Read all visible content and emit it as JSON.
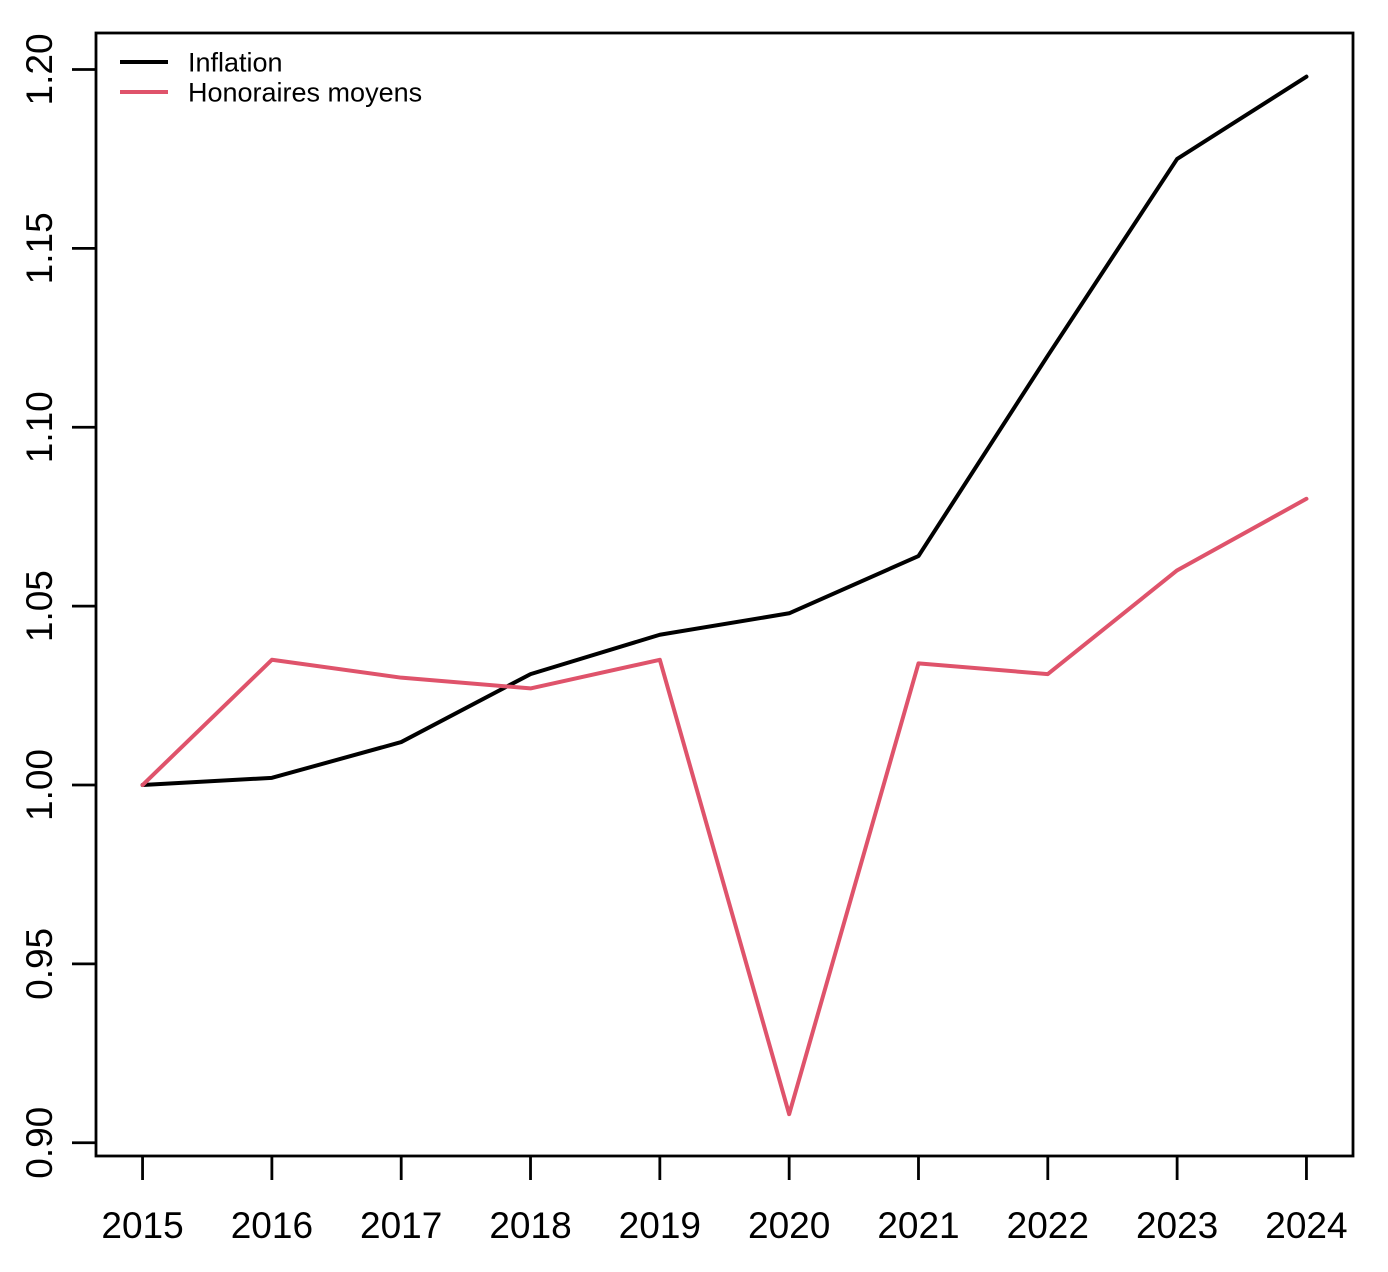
{
  "chart_data": {
    "type": "line",
    "title": "",
    "xlabel": "",
    "ylabel": "",
    "x": [
      2015,
      2016,
      2017,
      2018,
      2019,
      2020,
      2021,
      2022,
      2023,
      2024
    ],
    "x_ticks": [
      "2015",
      "2016",
      "2017",
      "2018",
      "2019",
      "2020",
      "2021",
      "2022",
      "2023",
      "2024"
    ],
    "y_ticks": [
      "0.90",
      "0.95",
      "1.00",
      "1.05",
      "1.10",
      "1.15",
      "1.20"
    ],
    "y_tick_values": [
      0.9,
      0.95,
      1.0,
      1.05,
      1.1,
      1.15,
      1.2
    ],
    "xlim": [
      2014.64,
      2024.36
    ],
    "ylim": [
      0.8963,
      1.2102
    ],
    "grid": false,
    "legend_position": "topleft",
    "series": [
      {
        "name": "Inflation",
        "color": "#000000",
        "values": [
          1.0,
          1.002,
          1.012,
          1.031,
          1.042,
          1.048,
          1.064,
          1.12,
          1.175,
          1.198
        ]
      },
      {
        "name": "Honoraires moyens",
        "color": "#DF536B",
        "values": [
          1.0,
          1.035,
          1.03,
          1.027,
          1.035,
          0.908,
          1.034,
          1.031,
          1.06,
          1.08
        ]
      }
    ]
  },
  "legend": {
    "items": [
      {
        "label": "Inflation",
        "color": "#000000"
      },
      {
        "label": "Honoraires moyens",
        "color": "#DF536B"
      }
    ]
  }
}
